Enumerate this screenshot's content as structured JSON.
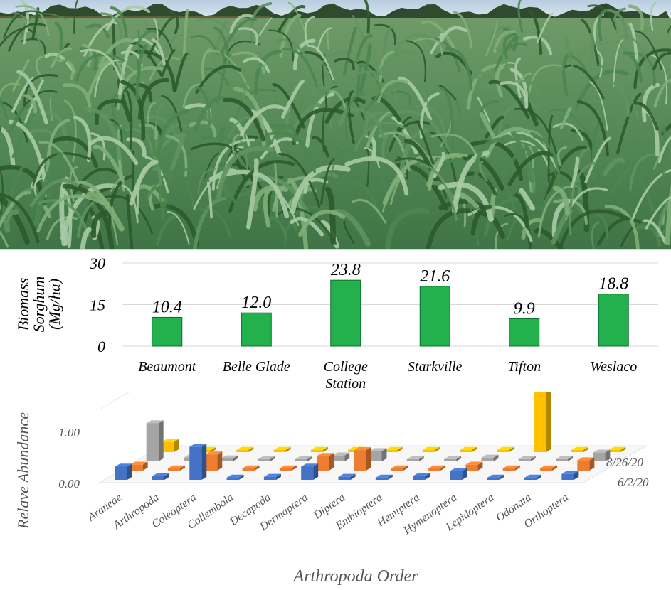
{
  "chart_data": [
    {
      "type": "bar",
      "ylabel": [
        "Biomass",
        "Sorghum",
        "(Mg/ha)"
      ],
      "categories": [
        "Beaumont",
        "Belle Glade",
        "College Station",
        "Starkville",
        "Tifton",
        "Weslaco"
      ],
      "category_lines": [
        [
          "Beaumont"
        ],
        [
          "Belle Glade"
        ],
        [
          "College",
          "Station"
        ],
        [
          "Starkville"
        ],
        [
          "Tifton"
        ],
        [
          "Weslaco"
        ]
      ],
      "values": [
        10.4,
        12.0,
        23.8,
        21.6,
        9.9,
        18.8
      ],
      "value_labels": [
        "10.4",
        "12.0",
        "23.8",
        "21.6",
        "9.9",
        "18.8"
      ],
      "yticks": [
        0,
        15,
        30
      ],
      "ylim": [
        0,
        30
      ],
      "bar_color": "#22b14c",
      "grid": true
    },
    {
      "type": "bar3d",
      "ylabel": "Relave Abundance",
      "xlabel": "Arthropoda Order",
      "ytick_labels": [
        "0.00",
        "1.00"
      ],
      "yticks": [
        0,
        1
      ],
      "categories": [
        "Araneae",
        "Arthropoda",
        "Coleoptera",
        "Collembola",
        "Decapoda",
        "Dermaptera",
        "Diptera",
        "Embioptera",
        "Hemiptera",
        "Hymenoptera",
        "Lepidoptera",
        "Odonata",
        "Orthoptera"
      ],
      "series": [
        {
          "name": "6/2/20",
          "color": "#4472c4",
          "values": [
            0.18,
            0.05,
            0.45,
            0.02,
            0.04,
            0.18,
            0.04,
            0.03,
            0.05,
            0.12,
            0.02,
            0.03,
            0.08
          ]
        },
        {
          "name": "",
          "color": "#ed7d31",
          "values": [
            0.08,
            0.03,
            0.22,
            0.03,
            0.03,
            0.2,
            0.28,
            0.03,
            0.03,
            0.08,
            0.03,
            0.03,
            0.14
          ]
        },
        {
          "name": "",
          "color": "#a5a5a5",
          "values": [
            0.52,
            0.05,
            0.04,
            0.03,
            0.03,
            0.08,
            0.14,
            0.03,
            0.03,
            0.05,
            0.03,
            0.03,
            0.12
          ]
        },
        {
          "name": "8/26/20",
          "color": "#ffc000",
          "values": [
            0.14,
            0.03,
            0.03,
            0.03,
            0.03,
            0.03,
            0.03,
            0.03,
            0.03,
            0.03,
            0.92,
            0.03,
            0.03
          ]
        }
      ],
      "depth_labels": [
        "8/26/20",
        "6/2/20"
      ]
    }
  ],
  "photo": {
    "sky_color": "#c8d6e4",
    "tree_color": "#2f4a2c",
    "foliage_dark": "#2c5a2e",
    "foliage_mid": "#5e9460",
    "foliage_light": "#a9cba6"
  }
}
